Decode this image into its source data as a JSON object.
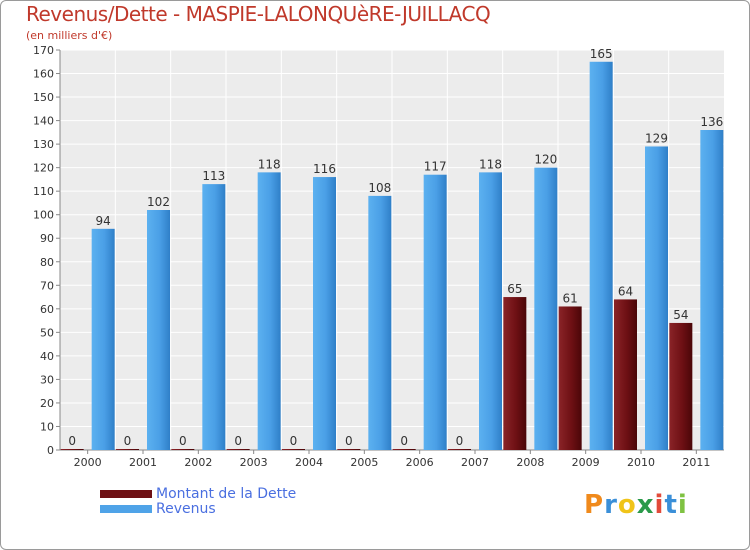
{
  "chart_data": {
    "type": "bar",
    "title": "Revenus/Dette - MASPIE-LALONQUèRE-JUILLACQ",
    "subtitle": "(en milliers d'€)",
    "categories": [
      "2000",
      "2001",
      "2002",
      "2003",
      "2004",
      "2005",
      "2006",
      "2007",
      "2008",
      "2009",
      "2010",
      "2011"
    ],
    "series": [
      {
        "name": "Montant de la Dette",
        "color": "#6e1014",
        "values": [
          0,
          0,
          0,
          0,
          0,
          0,
          0,
          0,
          65,
          61,
          64,
          54
        ]
      },
      {
        "name": "Revenus",
        "color": "#4fa3e8",
        "values": [
          94,
          102,
          113,
          118,
          116,
          108,
          117,
          118,
          120,
          165,
          129,
          136
        ]
      }
    ],
    "ylim": [
      0,
      170
    ],
    "yticks": [
      0,
      10,
      20,
      30,
      40,
      50,
      60,
      70,
      80,
      90,
      100,
      110,
      120,
      130,
      140,
      150,
      160,
      170
    ],
    "grid": true,
    "legend_position": "bottom-left"
  },
  "brand": {
    "letters": [
      "P",
      "r",
      "o",
      "x",
      "i",
      "t",
      "i"
    ],
    "colors": [
      "#f08a1c",
      "#3a8fd8",
      "#f0c419",
      "#2a9a4a",
      "#e24a3a",
      "#3a8fd8",
      "#7fc242"
    ]
  }
}
